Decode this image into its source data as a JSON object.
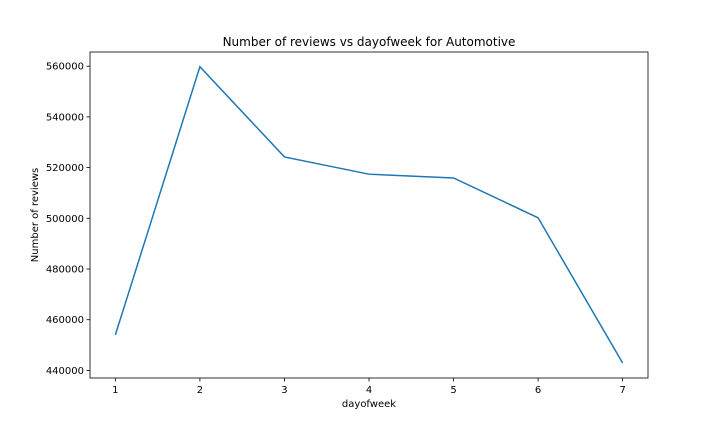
{
  "chart_data": {
    "type": "line",
    "title": "Number of reviews vs dayofweek for Automotive",
    "xlabel": "dayofweek",
    "ylabel": "Number of reviews",
    "x": [
      1,
      2,
      3,
      4,
      5,
      6,
      7
    ],
    "series": [
      {
        "values": [
          454000,
          559800,
          524200,
          517400,
          515900,
          500200,
          442900
        ]
      }
    ],
    "xticks": [
      1,
      2,
      3,
      4,
      5,
      6,
      7
    ],
    "yticks": [
      440000,
      460000,
      480000,
      500000,
      520000,
      540000,
      560000
    ],
    "xlim": [
      0.7,
      7.3
    ],
    "ylim": [
      437000,
      565600
    ],
    "grid": false,
    "line_color": "#1f77b4"
  }
}
